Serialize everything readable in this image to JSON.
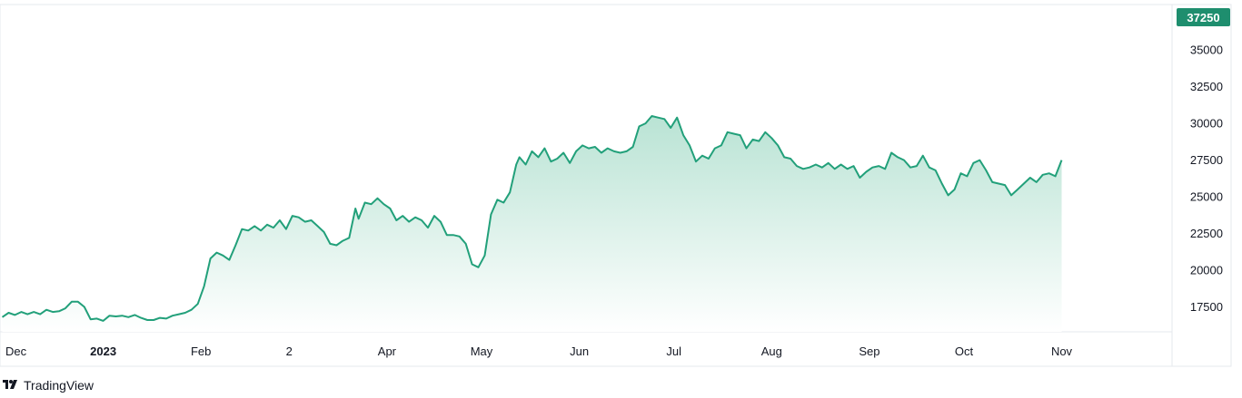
{
  "chart_data": {
    "type": "area",
    "ylim": [
      15800,
      38100
    ],
    "y_ticks": [
      17500,
      20000,
      22500,
      25000,
      27500,
      30000,
      32500,
      35000
    ],
    "x_ticks": [
      {
        "label": "Dec",
        "x": "2022-12-01",
        "bold": false
      },
      {
        "label": "2023",
        "x": "2023-01-01",
        "bold": true
      },
      {
        "label": "Feb",
        "x": "2023-02-01",
        "bold": false
      },
      {
        "label": "2",
        "x": "2023-03-01",
        "bold": false
      },
      {
        "label": "Apr",
        "x": "2023-04-01",
        "bold": false
      },
      {
        "label": "May",
        "x": "2023-05-01",
        "bold": false
      },
      {
        "label": "Jun",
        "x": "2023-06-01",
        "bold": false
      },
      {
        "label": "Jul",
        "x": "2023-07-01",
        "bold": false
      },
      {
        "label": "Aug",
        "x": "2023-08-01",
        "bold": false
      },
      {
        "label": "Sep",
        "x": "2023-09-01",
        "bold": false
      },
      {
        "label": "Oct",
        "x": "2023-10-01",
        "bold": false
      },
      {
        "label": "Nov",
        "x": "2023-11-01",
        "bold": false
      }
    ],
    "x_range": [
      "2022-12-01",
      "2023-12-06"
    ],
    "last_value_label": "37250",
    "last_value": 37250,
    "line_color": "#22a07a",
    "fill_top_color": "#b9e3d4",
    "fill_bottom_color": "#ffffff",
    "label_bg_color": "#1e8e6e",
    "grid": false,
    "series": [
      {
        "points": [
          [
            "2022-11-30",
            16800
          ],
          [
            "2022-12-02",
            17100
          ],
          [
            "2022-12-04",
            16950
          ],
          [
            "2022-12-06",
            17150
          ],
          [
            "2022-12-08",
            17000
          ],
          [
            "2022-12-10",
            17150
          ],
          [
            "2022-12-12",
            17000
          ],
          [
            "2022-12-14",
            17300
          ],
          [
            "2022-12-16",
            17150
          ],
          [
            "2022-12-18",
            17200
          ],
          [
            "2022-12-20",
            17400
          ],
          [
            "2022-12-22",
            17850
          ],
          [
            "2022-12-24",
            17850
          ],
          [
            "2022-12-26",
            17500
          ],
          [
            "2022-12-28",
            16650
          ],
          [
            "2022-12-30",
            16700
          ],
          [
            "2023-01-01",
            16550
          ],
          [
            "2023-01-03",
            16900
          ],
          [
            "2023-01-05",
            16850
          ],
          [
            "2023-01-07",
            16900
          ],
          [
            "2023-01-09",
            16800
          ],
          [
            "2023-01-11",
            16950
          ],
          [
            "2023-01-13",
            16750
          ],
          [
            "2023-01-15",
            16600
          ],
          [
            "2023-01-17",
            16600
          ],
          [
            "2023-01-19",
            16750
          ],
          [
            "2023-01-21",
            16700
          ],
          [
            "2023-01-23",
            16900
          ],
          [
            "2023-01-25",
            17000
          ],
          [
            "2023-01-27",
            17100
          ],
          [
            "2023-01-29",
            17300
          ],
          [
            "2023-01-31",
            17700
          ],
          [
            "2023-02-02",
            18900
          ],
          [
            "2023-02-04",
            20800
          ],
          [
            "2023-02-06",
            21200
          ],
          [
            "2023-02-08",
            21000
          ],
          [
            "2023-02-10",
            20700
          ],
          [
            "2023-02-12",
            21700
          ],
          [
            "2023-02-14",
            22800
          ],
          [
            "2023-02-16",
            22700
          ],
          [
            "2023-02-18",
            23000
          ],
          [
            "2023-02-20",
            22700
          ],
          [
            "2023-02-22",
            23100
          ],
          [
            "2023-02-24",
            22900
          ],
          [
            "2023-02-26",
            23400
          ],
          [
            "2023-02-28",
            22800
          ],
          [
            "2023-03-02",
            23700
          ],
          [
            "2023-03-04",
            23600
          ],
          [
            "2023-03-06",
            23300
          ],
          [
            "2023-03-08",
            23400
          ],
          [
            "2023-03-10",
            23000
          ],
          [
            "2023-03-12",
            22600
          ],
          [
            "2023-03-14",
            21800
          ],
          [
            "2023-03-16",
            21700
          ],
          [
            "2023-03-18",
            22000
          ],
          [
            "2023-03-20",
            22200
          ],
          [
            "2023-03-22",
            24200
          ],
          [
            "2023-03-23",
            23500
          ],
          [
            "2023-03-25",
            24600
          ],
          [
            "2023-03-27",
            24500
          ],
          [
            "2023-03-29",
            24900
          ],
          [
            "2023-03-31",
            24500
          ],
          [
            "2023-04-02",
            24200
          ],
          [
            "2023-04-04",
            23400
          ],
          [
            "2023-04-06",
            23700
          ],
          [
            "2023-04-08",
            23300
          ],
          [
            "2023-04-10",
            23600
          ],
          [
            "2023-04-12",
            23400
          ],
          [
            "2023-04-14",
            22900
          ],
          [
            "2023-04-16",
            23700
          ],
          [
            "2023-04-18",
            23300
          ],
          [
            "2023-04-20",
            22400
          ],
          [
            "2023-04-22",
            22400
          ],
          [
            "2023-04-24",
            22300
          ],
          [
            "2023-04-26",
            21800
          ],
          [
            "2023-04-28",
            20400
          ],
          [
            "2023-04-30",
            20200
          ],
          [
            "2023-05-02",
            21000
          ],
          [
            "2023-05-04",
            23800
          ],
          [
            "2023-05-06",
            24800
          ],
          [
            "2023-05-08",
            24600
          ],
          [
            "2023-05-10",
            25300
          ],
          [
            "2023-05-12",
            27200
          ],
          [
            "2023-05-13",
            27700
          ],
          [
            "2023-05-15",
            27200
          ],
          [
            "2023-05-17",
            28100
          ],
          [
            "2023-05-19",
            27700
          ],
          [
            "2023-05-21",
            28300
          ],
          [
            "2023-05-23",
            27400
          ],
          [
            "2023-05-25",
            27600
          ],
          [
            "2023-05-27",
            28000
          ],
          [
            "2023-05-29",
            27300
          ],
          [
            "2023-05-31",
            28100
          ],
          [
            "2023-06-02",
            28500
          ],
          [
            "2023-06-04",
            28300
          ],
          [
            "2023-06-06",
            28400
          ],
          [
            "2023-06-08",
            28000
          ],
          [
            "2023-06-10",
            28300
          ],
          [
            "2023-06-12",
            28100
          ],
          [
            "2023-06-14",
            28000
          ],
          [
            "2023-06-16",
            28100
          ],
          [
            "2023-06-18",
            28400
          ],
          [
            "2023-06-20",
            29800
          ],
          [
            "2023-06-22",
            30000
          ],
          [
            "2023-06-24",
            30500
          ],
          [
            "2023-06-26",
            30400
          ],
          [
            "2023-06-28",
            30300
          ],
          [
            "2023-06-30",
            29700
          ],
          [
            "2023-07-02",
            30400
          ],
          [
            "2023-07-04",
            29200
          ],
          [
            "2023-07-06",
            28500
          ],
          [
            "2023-07-08",
            27400
          ],
          [
            "2023-07-10",
            27800
          ],
          [
            "2023-07-12",
            27600
          ],
          [
            "2023-07-14",
            28300
          ],
          [
            "2023-07-16",
            28500
          ],
          [
            "2023-07-18",
            29400
          ],
          [
            "2023-07-20",
            29300
          ],
          [
            "2023-07-22",
            29200
          ],
          [
            "2023-07-24",
            28300
          ],
          [
            "2023-07-26",
            28900
          ],
          [
            "2023-07-28",
            28800
          ],
          [
            "2023-07-30",
            29400
          ],
          [
            "2023-08-01",
            29000
          ],
          [
            "2023-08-03",
            28500
          ],
          [
            "2023-08-05",
            27700
          ],
          [
            "2023-08-07",
            27600
          ],
          [
            "2023-08-09",
            27100
          ],
          [
            "2023-08-11",
            26900
          ],
          [
            "2023-08-13",
            27000
          ],
          [
            "2023-08-15",
            27200
          ],
          [
            "2023-08-17",
            27000
          ],
          [
            "2023-08-19",
            27300
          ],
          [
            "2023-08-21",
            26900
          ],
          [
            "2023-08-23",
            27200
          ],
          [
            "2023-08-25",
            26900
          ],
          [
            "2023-08-27",
            27100
          ],
          [
            "2023-08-29",
            26300
          ],
          [
            "2023-08-31",
            26700
          ],
          [
            "2023-09-02",
            27000
          ],
          [
            "2023-09-04",
            27100
          ],
          [
            "2023-09-06",
            26900
          ],
          [
            "2023-09-08",
            28000
          ],
          [
            "2023-09-10",
            27700
          ],
          [
            "2023-09-12",
            27500
          ],
          [
            "2023-09-14",
            27000
          ],
          [
            "2023-09-16",
            27100
          ],
          [
            "2023-09-18",
            27800
          ],
          [
            "2023-09-20",
            27000
          ],
          [
            "2023-09-22",
            26800
          ],
          [
            "2023-09-24",
            25900
          ],
          [
            "2023-09-26",
            25100
          ],
          [
            "2023-09-28",
            25500
          ],
          [
            "2023-09-30",
            26600
          ],
          [
            "2023-10-02",
            26400
          ],
          [
            "2023-10-04",
            27300
          ],
          [
            "2023-10-06",
            27500
          ],
          [
            "2023-10-08",
            26800
          ],
          [
            "2023-10-10",
            26000
          ],
          [
            "2023-10-12",
            25900
          ],
          [
            "2023-10-14",
            25800
          ],
          [
            "2023-10-16",
            25100
          ],
          [
            "2023-10-18",
            25500
          ],
          [
            "2023-10-20",
            25900
          ],
          [
            "2023-10-22",
            26300
          ],
          [
            "2023-10-24",
            26000
          ],
          [
            "2023-10-26",
            26500
          ],
          [
            "2023-10-28",
            26600
          ],
          [
            "2023-10-30",
            26400
          ],
          [
            "2023-11-01",
            27500
          ]
        ]
      }
    ]
  },
  "branding": {
    "name": "TradingView",
    "logo_icon": "tradingview-logo-icon"
  }
}
